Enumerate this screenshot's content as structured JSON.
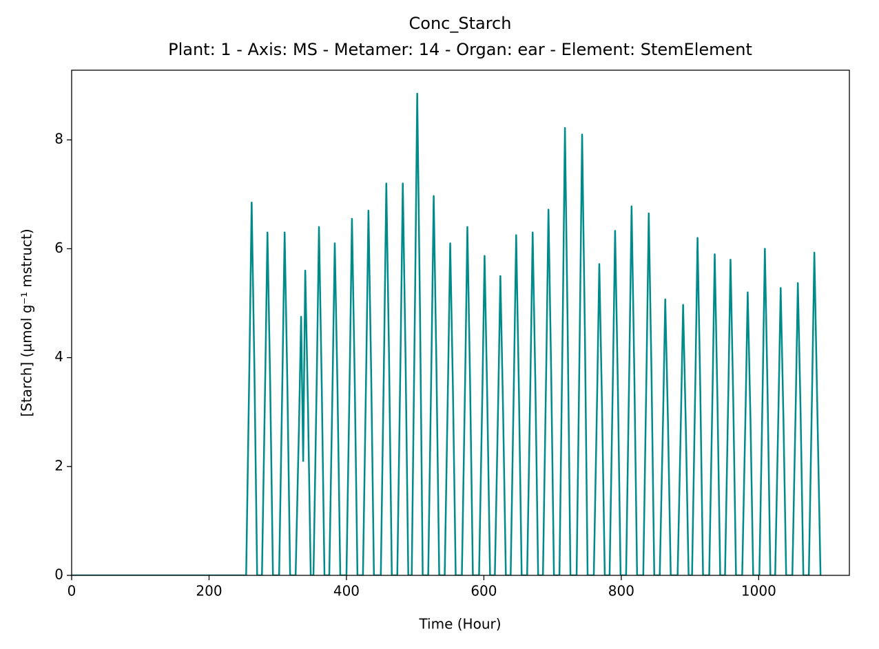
{
  "chart_data": {
    "type": "line",
    "title": "Conc_Starch",
    "subtitle": "Plant: 1 - Axis: MS - Metamer: 14 - Organ: ear - Element: StemElement",
    "x_label": "Time (Hour)",
    "y_label": "[Starch] (µmol g⁻¹ mstruct)",
    "xlim": [
      0,
      1132
    ],
    "ylim": [
      0,
      9.28
    ],
    "xticks": [
      0,
      200,
      400,
      600,
      800,
      1000
    ],
    "yticks": [
      0,
      2,
      4,
      6,
      8
    ],
    "grid": false,
    "series": [
      {
        "name": "Conc_Starch",
        "color": "#008b8b",
        "x": [
          0,
          254,
          259,
          262,
          266,
          270,
          277,
          282,
          285,
          289,
          293,
          302,
          307,
          310,
          314,
          318,
          326,
          331,
          334,
          337,
          340,
          344,
          348,
          352,
          357,
          360,
          364,
          368,
          375,
          380,
          383,
          387,
          391,
          400,
          405,
          408,
          412,
          416,
          424,
          429,
          432,
          436,
          440,
          450,
          455,
          458,
          462,
          466,
          474,
          479,
          482,
          486,
          490,
          495,
          500,
          503,
          507,
          511,
          519,
          524,
          527,
          531,
          535,
          543,
          548,
          551,
          555,
          559,
          568,
          573,
          576,
          580,
          584,
          593,
          598,
          601,
          605,
          609,
          616,
          621,
          624,
          628,
          632,
          639,
          644,
          647,
          651,
          655,
          663,
          668,
          671,
          675,
          679,
          686,
          691,
          694,
          698,
          702,
          710,
          715,
          718,
          722,
          726,
          735,
          740,
          743,
          747,
          751,
          760,
          765,
          768,
          772,
          776,
          783,
          788,
          791,
          795,
          799,
          807,
          812,
          815,
          819,
          823,
          832,
          837,
          840,
          844,
          848,
          856,
          861,
          864,
          868,
          872,
          882,
          887,
          890,
          894,
          898,
          903,
          908,
          911,
          915,
          919,
          928,
          933,
          936,
          940,
          944,
          951,
          956,
          959,
          963,
          967,
          976,
          981,
          984,
          988,
          992,
          1001,
          1006,
          1009,
          1013,
          1017,
          1024,
          1029,
          1032,
          1036,
          1040,
          1049,
          1054,
          1057,
          1061,
          1065,
          1073,
          1078,
          1081,
          1085,
          1090
        ],
        "values": [
          0,
          0,
          4.1,
          6.85,
          3.8,
          0,
          0,
          3.8,
          6.3,
          3.5,
          0,
          0,
          3.8,
          6.3,
          3.5,
          0,
          0,
          2.8,
          4.75,
          2.1,
          5.6,
          3.1,
          0,
          0,
          3.8,
          6.4,
          3.5,
          0,
          0,
          3.7,
          6.1,
          3.4,
          0,
          0,
          3.9,
          6.55,
          3.6,
          0,
          0,
          4.0,
          6.7,
          3.7,
          0,
          0,
          4.3,
          7.2,
          4.0,
          0,
          0,
          4.3,
          7.2,
          4.0,
          0,
          0,
          5.3,
          8.85,
          4.9,
          0,
          0,
          4.2,
          6.97,
          3.8,
          0,
          0,
          3.7,
          6.1,
          3.4,
          0,
          0,
          3.8,
          6.4,
          3.5,
          0,
          0,
          3.5,
          5.87,
          3.2,
          0,
          0,
          3.3,
          5.5,
          3.0,
          0,
          0,
          3.8,
          6.25,
          3.4,
          0,
          0,
          3.8,
          6.3,
          3.5,
          0,
          0,
          4.0,
          6.72,
          3.7,
          0,
          0,
          4.9,
          8.22,
          4.5,
          0,
          0,
          4.9,
          8.1,
          4.5,
          0,
          0,
          3.4,
          5.72,
          3.1,
          0,
          0,
          3.8,
          6.33,
          3.5,
          0,
          0,
          4.1,
          6.78,
          3.7,
          0,
          0,
          4.0,
          6.65,
          3.7,
          0,
          0,
          3.0,
          5.07,
          2.8,
          0,
          0,
          3.0,
          4.97,
          2.7,
          0,
          0,
          3.7,
          6.2,
          3.4,
          0,
          0,
          3.5,
          5.9,
          3.2,
          0,
          0,
          3.5,
          5.8,
          3.2,
          0,
          0,
          3.1,
          5.2,
          2.9,
          0,
          0,
          3.6,
          6.0,
          3.3,
          0,
          0,
          3.2,
          5.28,
          2.9,
          0,
          0,
          3.2,
          5.37,
          3.0,
          0,
          0,
          3.6,
          5.93,
          3.3,
          0
        ]
      }
    ]
  }
}
